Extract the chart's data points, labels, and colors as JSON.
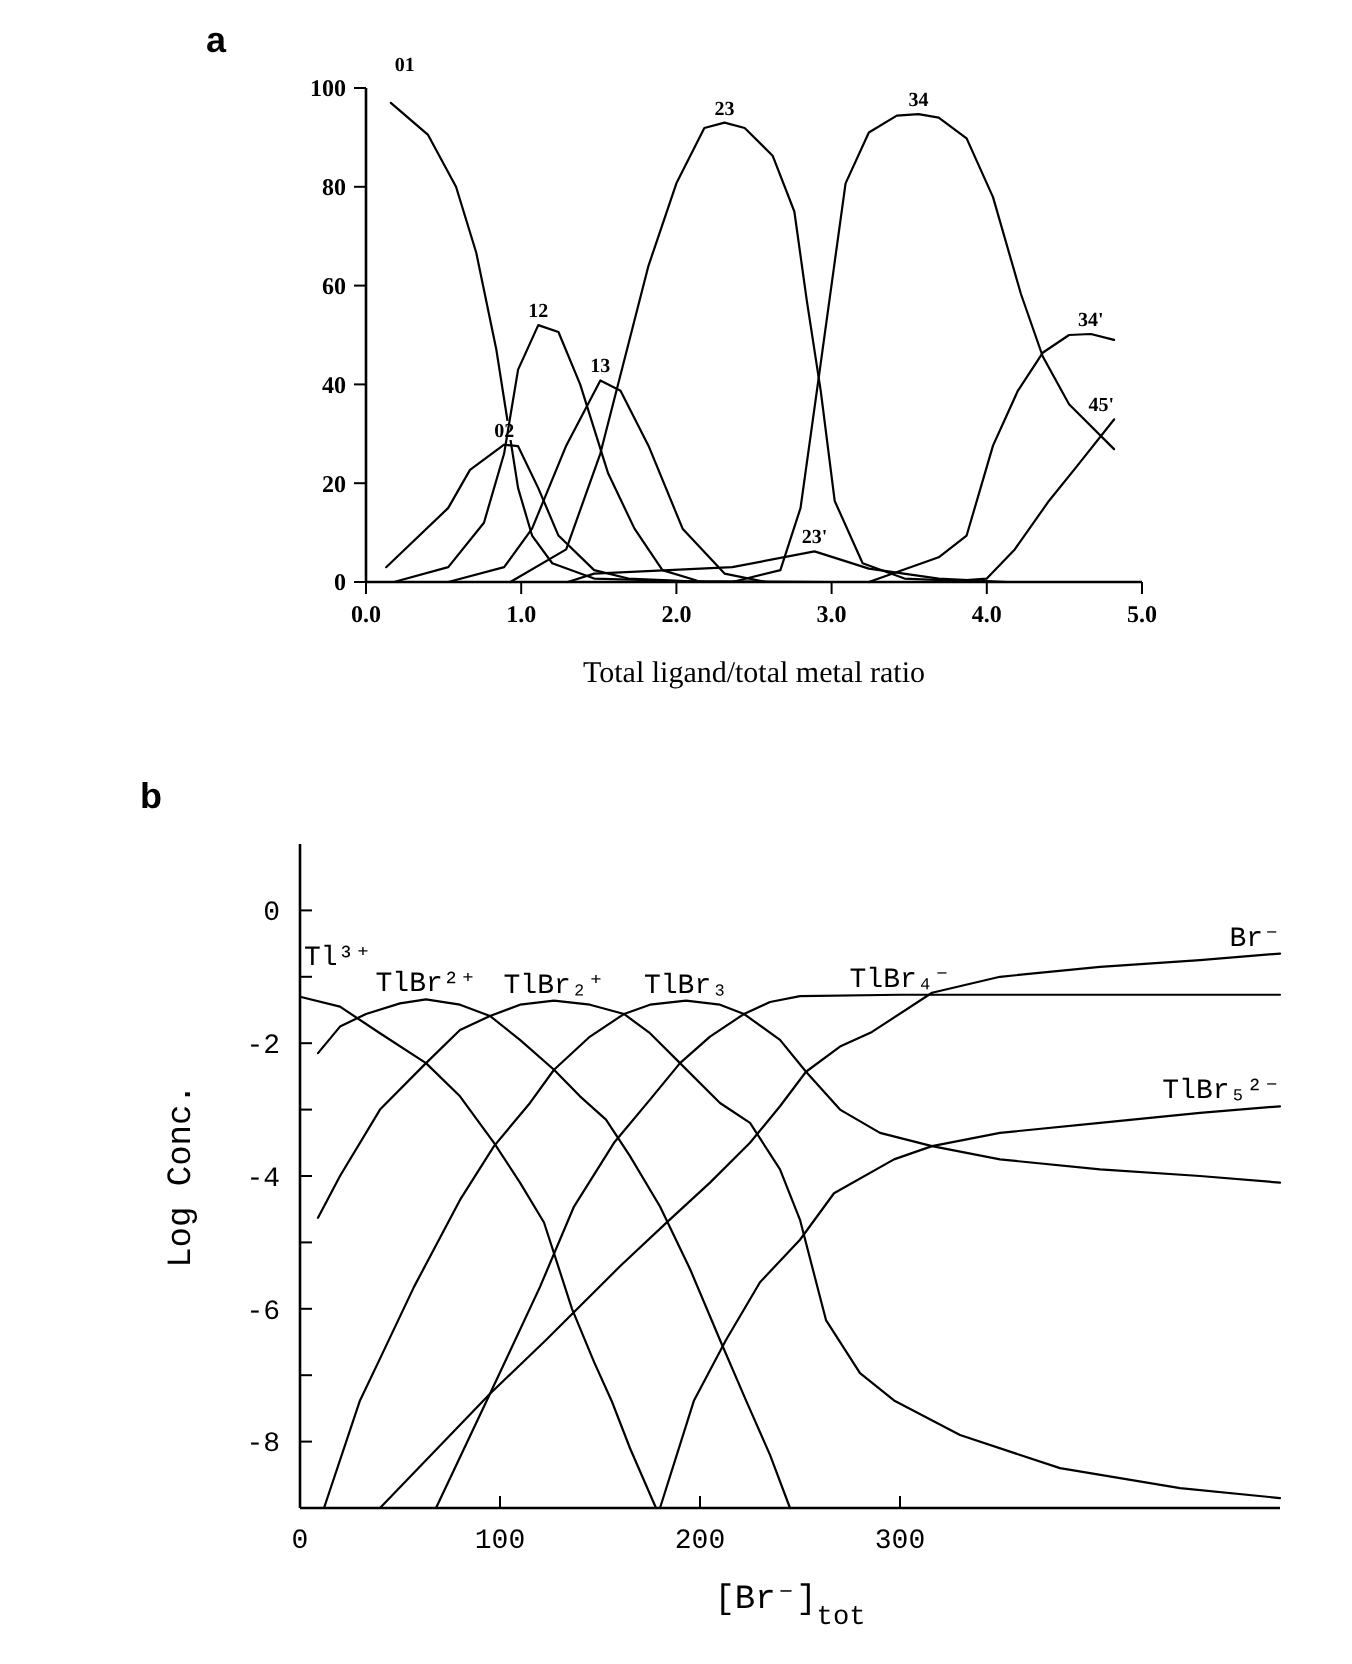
{
  "chart_data": [
    {
      "type": "line",
      "title": "a",
      "xlabel": "Total ligand/total metal ratio",
      "xlim": [
        0,
        5
      ],
      "ylim": [
        0,
        100
      ],
      "xticks": [
        {
          "value": 0,
          "label": "0.0"
        },
        {
          "value": 1,
          "label": "1.0"
        },
        {
          "value": 2,
          "label": "2.0"
        },
        {
          "value": 3,
          "label": "3.0"
        },
        {
          "value": 4,
          "label": "4.0"
        },
        {
          "value": 5,
          "label": "5.0"
        }
      ],
      "yticks": [
        0,
        20,
        40,
        60,
        80,
        100
      ],
      "series": [
        {
          "name": "01",
          "color": "#000000",
          "x": [
            0.16,
            0.4,
            0.58,
            0.71,
            0.84,
            0.91,
            0.98,
            1.07,
            1.2,
            1.47,
            2.0,
            3.0,
            4.0,
            4.82
          ],
          "values": [
            97,
            90.5,
            80,
            66.7,
            47,
            33,
            19,
            9.4,
            3.8,
            0.7,
            0.2,
            0,
            0,
            0
          ]
        },
        {
          "name": "02",
          "color": "#000000",
          "x": [
            0.13,
            0.53,
            0.67,
            0.89,
            0.98,
            1.11,
            1.24,
            1.47,
            1.69,
            2.2
          ],
          "values": [
            3,
            15,
            22.7,
            27.8,
            27.5,
            19,
            9.4,
            2.4,
            0.7,
            0
          ]
        },
        {
          "name": "12",
          "color": "#000000",
          "x": [
            0.18,
            0.53,
            0.76,
            0.89,
            0.98,
            1.11,
            1.24,
            1.38,
            1.56,
            1.73,
            1.91,
            2.13
          ],
          "values": [
            0,
            3,
            12,
            26,
            43,
            52,
            50.6,
            40,
            22,
            10.8,
            2.4,
            0.3
          ]
        },
        {
          "name": "13",
          "color": "#000000",
          "x": [
            0.53,
            0.89,
            1.07,
            1.29,
            1.51,
            1.64,
            1.82,
            2.04,
            2.31,
            2.58
          ],
          "values": [
            0,
            3,
            10.8,
            27.6,
            40.8,
            38.7,
            27.6,
            10.8,
            1.7,
            0
          ]
        },
        {
          "name": "23",
          "color": "#000000",
          "x": [
            0.93,
            1.29,
            1.51,
            1.82,
            2.0,
            2.18,
            2.31,
            2.44,
            2.62,
            2.76,
            2.84,
            2.93,
            3.02,
            3.2,
            3.47,
            4.0
          ],
          "values": [
            0,
            6.6,
            26,
            64,
            80.7,
            91.9,
            93,
            91.9,
            86.3,
            75,
            57,
            38.7,
            16.4,
            3.8,
            0.7,
            0
          ]
        },
        {
          "name": "23'",
          "color": "#000000",
          "x": [
            1.3,
            1.47,
            2.36,
            2.89,
            3.24,
            3.69,
            4.13
          ],
          "values": [
            0,
            1.7,
            3,
            6.2,
            2.7,
            0.7,
            0
          ]
        },
        {
          "name": "34",
          "color": "#000000",
          "x": [
            2.36,
            2.67,
            2.8,
            2.93,
            3.09,
            3.24,
            3.42,
            3.56,
            3.69,
            3.87,
            4.04,
            4.22,
            4.36,
            4.53,
            4.82
          ],
          "values": [
            0,
            2.4,
            15,
            44.3,
            80.7,
            91,
            94.4,
            94.7,
            94,
            89.8,
            77.9,
            58.3,
            45.7,
            36,
            26.9
          ]
        },
        {
          "name": "34'",
          "color": "#000000",
          "x": [
            3.24,
            3.69,
            3.87,
            4.04,
            4.2,
            4.36,
            4.53,
            4.67,
            4.82
          ],
          "values": [
            0,
            5,
            9.4,
            27.6,
            38.7,
            46.4,
            50,
            50.2,
            49
          ]
        },
        {
          "name": "45'",
          "color": "#000000",
          "x": [
            3.69,
            4.0,
            4.18,
            4.4,
            4.58,
            4.82
          ],
          "values": [
            0,
            0.7,
            6.6,
            16.4,
            23.4,
            32.9
          ]
        }
      ],
      "line_style": "solid"
    },
    {
      "type": "line",
      "title": "b",
      "xlabel": "[Br⁻]$_{tot}$",
      "ylabel": "Log Conc.",
      "xlim": [
        0,
        490
      ],
      "ylim": [
        -9,
        1
      ],
      "xticks": [
        0,
        100,
        200,
        300
      ],
      "yticks": [
        -8,
        {
          "value": -7,
          "label": null
        },
        -6,
        {
          "value": -5,
          "label": null
        },
        -4,
        {
          "value": -3,
          "label": null
        },
        -2,
        {
          "value": -1,
          "label": null
        },
        0
      ],
      "series": [
        {
          "name": "Tl³⁺",
          "color": "#000000",
          "x": [
            0,
            20,
            40,
            63,
            80,
            97,
            110,
            122,
            136,
            147,
            156,
            165,
            178
          ],
          "values": [
            -1.3,
            -1.45,
            -1.85,
            -2.3,
            -2.8,
            -3.5,
            -4.1,
            -4.7,
            -6.0,
            -6.8,
            -7.4,
            -8.1,
            -9
          ]
        },
        {
          "name": "TlBr²⁺",
          "color": "#000000",
          "x": [
            9,
            20,
            33,
            50,
            63,
            80,
            95,
            110,
            127,
            140,
            153,
            165,
            180,
            195,
            210,
            223,
            235,
            245
          ],
          "values": [
            -2.15,
            -1.75,
            -1.56,
            -1.4,
            -1.34,
            -1.42,
            -1.59,
            -1.95,
            -2.4,
            -2.8,
            -3.15,
            -3.7,
            -4.46,
            -5.4,
            -6.47,
            -7.38,
            -8.2,
            -9
          ]
        },
        {
          "name": "TlBr₂⁺",
          "color": "#000000",
          "x": [
            9,
            20,
            40,
            63,
            80,
            95,
            110,
            127,
            145,
            162,
            175,
            190,
            210,
            225,
            240,
            250,
            263,
            280,
            297,
            330,
            380,
            440,
            490
          ],
          "values": [
            -4.63,
            -4.0,
            -3.0,
            -2.3,
            -1.8,
            -1.59,
            -1.42,
            -1.36,
            -1.42,
            -1.56,
            -1.85,
            -2.3,
            -2.9,
            -3.2,
            -3.9,
            -4.66,
            -6.17,
            -6.97,
            -7.38,
            -7.9,
            -8.4,
            -8.7,
            -8.85
          ]
        },
        {
          "name": "TlBr₃",
          "color": "#000000",
          "x": [
            12,
            30,
            40,
            57,
            80,
            97,
            115,
            127,
            145,
            162,
            175,
            193,
            210,
            222,
            240,
            253,
            270,
            290,
            316,
            350,
            400,
            450,
            490
          ],
          "values": [
            -9,
            -7.38,
            -6.75,
            -5.67,
            -4.36,
            -3.55,
            -2.9,
            -2.4,
            -1.9,
            -1.56,
            -1.42,
            -1.36,
            -1.42,
            -1.56,
            -1.95,
            -2.43,
            -3.0,
            -3.35,
            -3.55,
            -3.75,
            -3.9,
            -4.0,
            -4.1
          ]
        },
        {
          "name": "TlBr₄⁻",
          "color": "#000000",
          "x": [
            68,
            95,
            120,
            137,
            157,
            175,
            190,
            205,
            222,
            235,
            250,
            300,
            400,
            490
          ],
          "values": [
            -9,
            -7.28,
            -5.67,
            -4.46,
            -3.5,
            -2.85,
            -2.3,
            -1.9,
            -1.56,
            -1.38,
            -1.29,
            -1.27,
            -1.27,
            -1.27
          ]
        },
        {
          "name": "Br⁻",
          "color": "#000000",
          "x": [
            40,
            95,
            123,
            160,
            183,
            205,
            225,
            240,
            253,
            270,
            286,
            316,
            350,
            400,
            450,
            490
          ],
          "values": [
            -9,
            -7.28,
            -6.47,
            -5.36,
            -4.71,
            -4.1,
            -3.5,
            -2.95,
            -2.43,
            -2.05,
            -1.83,
            -1.24,
            -1.0,
            -0.85,
            -0.75,
            -0.65
          ]
        },
        {
          "name": "TlBr₅²⁻",
          "color": "#000000",
          "x": [
            180,
            197,
            213,
            230,
            250,
            267,
            297,
            316,
            350,
            400,
            450,
            490
          ],
          "values": [
            -9,
            -7.38,
            -6.47,
            -5.6,
            -4.96,
            -4.26,
            -3.75,
            -3.55,
            -3.35,
            -3.2,
            -3.05,
            -2.95
          ]
        }
      ],
      "line_style": "solid"
    }
  ]
}
